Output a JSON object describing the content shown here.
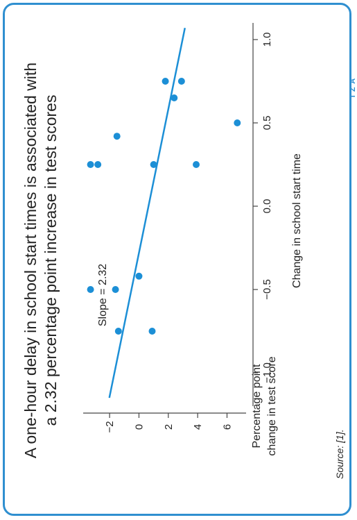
{
  "card": {
    "title_line1": "A one-hour delay in school start times is associated with",
    "title_line2": "a 2.32 percentage point increase in test scores",
    "source": "Source: [1].",
    "logo": "I Z A"
  },
  "colors": {
    "accent": "#1c8fd6",
    "frame": "#2f8fd0",
    "text": "#222222"
  },
  "chart_data": {
    "type": "scatter",
    "orientation": "rotated-90-counterclockwise",
    "xlabel": "Change in school start time",
    "ylabel_line1": "Percentage point",
    "ylabel_line2": "change in test score",
    "xlim": [
      -1.2,
      1.1
    ],
    "ylim": [
      -3.8,
      7.3
    ],
    "x_ticks": [
      -1.0,
      -0.5,
      0.0,
      0.5,
      1.0
    ],
    "x_tick_labels": [
      "−1.0",
      "−0.5",
      "0.0",
      "0.5",
      "1.0"
    ],
    "y_ticks": [
      -2,
      0,
      2,
      4,
      6
    ],
    "y_tick_labels": [
      "−2",
      "0",
      "2",
      "4",
      "6"
    ],
    "points": [
      {
        "x": -0.75,
        "y": -1.4
      },
      {
        "x": -0.75,
        "y": 0.9
      },
      {
        "x": -0.5,
        "y": -1.6
      },
      {
        "x": -0.5,
        "y": -3.3
      },
      {
        "x": -0.42,
        "y": 0.0
      },
      {
        "x": 0.25,
        "y": 3.9
      },
      {
        "x": 0.25,
        "y": 1.0
      },
      {
        "x": 0.25,
        "y": -2.8
      },
      {
        "x": 0.25,
        "y": -3.3
      },
      {
        "x": 0.42,
        "y": -1.5
      },
      {
        "x": 0.5,
        "y": 6.7
      },
      {
        "x": 0.65,
        "y": 2.4
      },
      {
        "x": 0.75,
        "y": 2.9
      },
      {
        "x": 0.75,
        "y": 1.8
      }
    ],
    "fit_line": {
      "slope": 2.32,
      "intercept": 0.65,
      "x_range": [
        -1.15,
        1.07
      ]
    },
    "annotation": "Slope = 2.32"
  }
}
